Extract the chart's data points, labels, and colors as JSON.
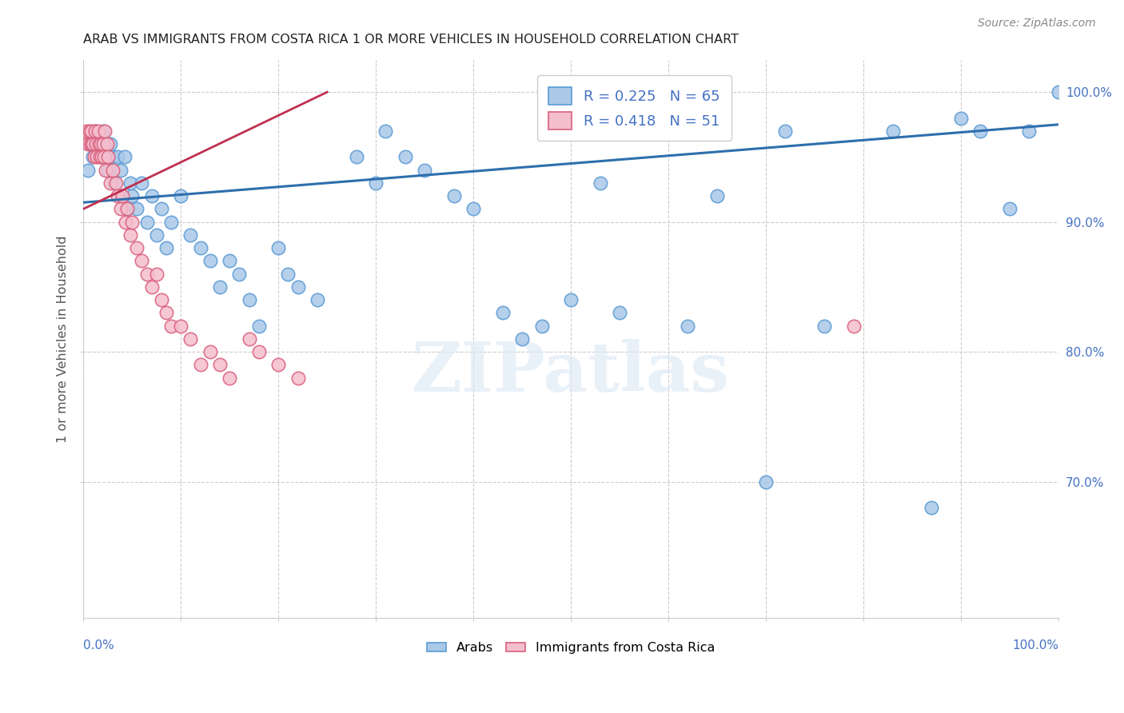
{
  "title": "ARAB VS IMMIGRANTS FROM COSTA RICA 1 OR MORE VEHICLES IN HOUSEHOLD CORRELATION CHART",
  "source": "Source: ZipAtlas.com",
  "ylabel": "1 or more Vehicles in Household",
  "watermark": "ZIPatlas",
  "xlim": [
    0.0,
    1.0
  ],
  "ylim": [
    0.595,
    1.025
  ],
  "yticks": [
    0.7,
    0.8,
    0.9,
    1.0
  ],
  "ytick_labels": [
    "70.0%",
    "80.0%",
    "90.0%",
    "100.0%"
  ],
  "arab_color": "#aac8e8",
  "arab_edge_color": "#5b9bd5",
  "costa_rica_color": "#f5bece",
  "costa_rica_edge_color": "#d9607c",
  "arab_line_color": "#2e6fad",
  "costa_rica_line_color": "#c03050",
  "legend_arab_R": "0.225",
  "legend_arab_N": "65",
  "legend_cr_R": "0.418",
  "legend_cr_N": "51",
  "arab_x": [
    0.005,
    0.008,
    0.01,
    0.012,
    0.015,
    0.018,
    0.02,
    0.022,
    0.025,
    0.028,
    0.03,
    0.032,
    0.035,
    0.038,
    0.04,
    0.042,
    0.045,
    0.048,
    0.05,
    0.055,
    0.06,
    0.065,
    0.07,
    0.075,
    0.08,
    0.085,
    0.09,
    0.1,
    0.11,
    0.12,
    0.13,
    0.14,
    0.15,
    0.16,
    0.17,
    0.18,
    0.2,
    0.21,
    0.22,
    0.24,
    0.28,
    0.3,
    0.31,
    0.33,
    0.35,
    0.38,
    0.4,
    0.43,
    0.45,
    0.47,
    0.5,
    0.53,
    0.55,
    0.62,
    0.65,
    0.7,
    0.72,
    0.76,
    0.83,
    0.87,
    0.9,
    0.92,
    0.95,
    0.97,
    1.0
  ],
  "arab_y": [
    0.94,
    0.96,
    0.95,
    0.97,
    0.96,
    0.95,
    0.97,
    0.96,
    0.94,
    0.96,
    0.95,
    0.93,
    0.95,
    0.94,
    0.92,
    0.95,
    0.91,
    0.93,
    0.92,
    0.91,
    0.93,
    0.9,
    0.92,
    0.89,
    0.91,
    0.88,
    0.9,
    0.92,
    0.89,
    0.88,
    0.87,
    0.85,
    0.87,
    0.86,
    0.84,
    0.82,
    0.88,
    0.86,
    0.85,
    0.84,
    0.95,
    0.93,
    0.97,
    0.95,
    0.94,
    0.92,
    0.91,
    0.83,
    0.81,
    0.82,
    0.84,
    0.93,
    0.83,
    0.82,
    0.92,
    0.7,
    0.97,
    0.82,
    0.97,
    0.68,
    0.98,
    0.97,
    0.91,
    0.97,
    1.0
  ],
  "cr_x": [
    0.003,
    0.005,
    0.006,
    0.007,
    0.008,
    0.009,
    0.01,
    0.011,
    0.012,
    0.013,
    0.014,
    0.015,
    0.016,
    0.017,
    0.018,
    0.019,
    0.02,
    0.021,
    0.022,
    0.023,
    0.024,
    0.025,
    0.028,
    0.03,
    0.033,
    0.035,
    0.038,
    0.04,
    0.043,
    0.045,
    0.048,
    0.05,
    0.055,
    0.06,
    0.065,
    0.07,
    0.075,
    0.08,
    0.085,
    0.09,
    0.1,
    0.11,
    0.12,
    0.13,
    0.14,
    0.15,
    0.17,
    0.18,
    0.2,
    0.22,
    0.79
  ],
  "cr_y": [
    0.97,
    0.96,
    0.97,
    0.96,
    0.97,
    0.96,
    0.96,
    0.95,
    0.97,
    0.96,
    0.95,
    0.97,
    0.96,
    0.95,
    0.96,
    0.95,
    0.96,
    0.95,
    0.97,
    0.94,
    0.96,
    0.95,
    0.93,
    0.94,
    0.93,
    0.92,
    0.91,
    0.92,
    0.9,
    0.91,
    0.89,
    0.9,
    0.88,
    0.87,
    0.86,
    0.85,
    0.86,
    0.84,
    0.83,
    0.82,
    0.82,
    0.81,
    0.79,
    0.8,
    0.79,
    0.78,
    0.81,
    0.8,
    0.79,
    0.78,
    0.82
  ],
  "background_color": "#ffffff",
  "grid_color": "#cccccc",
  "title_color": "#222222",
  "tick_color": "#4472c4"
}
